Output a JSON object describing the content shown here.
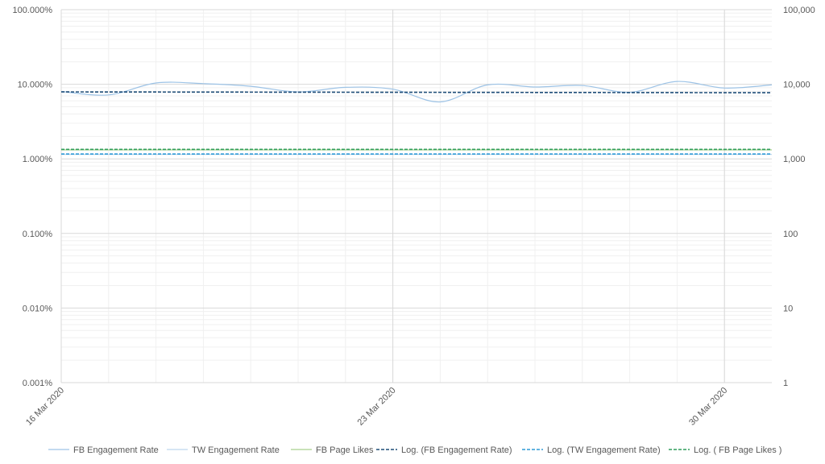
{
  "chart_data": {
    "type": "line",
    "title": "",
    "x_start": "2020-03-16",
    "x_end": "2020-03-31",
    "x_tick_labels": [
      "16 Mar 2020",
      "23 Mar 2020",
      "30 Mar 2020"
    ],
    "x_tick_dates": [
      "2020-03-16",
      "2020-03-23",
      "2020-03-30"
    ],
    "y_left": {
      "scale": "log",
      "min": 1e-05,
      "max": 1,
      "ticks": [
        1,
        0.1,
        0.01,
        0.001,
        0.0001,
        1e-05
      ],
      "tick_labels": [
        "100.000%",
        "10.000%",
        "1.000%",
        "0.100%",
        "0.010%",
        "0.001%"
      ]
    },
    "y_right": {
      "scale": "log",
      "min": 1,
      "max": 100000,
      "ticks": [
        100000,
        10000,
        1000,
        100,
        10,
        1
      ],
      "tick_labels": [
        "100,000",
        "10,000",
        "1,000",
        "100",
        "10",
        "1"
      ]
    },
    "grid": true,
    "legend_position": "bottom",
    "series": [
      {
        "name": "FB Engagement Rate",
        "axis": "left",
        "style": "solid",
        "color": "#9DC3E6",
        "x": [
          "2020-03-16",
          "2020-03-17",
          "2020-03-18",
          "2020-03-19",
          "2020-03-20",
          "2020-03-21",
          "2020-03-22",
          "2020-03-23",
          "2020-03-24",
          "2020-03-25",
          "2020-03-26",
          "2020-03-27",
          "2020-03-28",
          "2020-03-29",
          "2020-03-30",
          "2020-03-31"
        ],
        "values": [
          0.08,
          0.072,
          0.104,
          0.102,
          0.094,
          0.079,
          0.091,
          0.086,
          0.058,
          0.098,
          0.092,
          0.096,
          0.078,
          0.109,
          0.089,
          0.098
        ]
      },
      {
        "name": "TW Engagement Rate",
        "axis": "left",
        "style": "solid",
        "color": "#BDD7EE",
        "x": [
          "2020-03-16",
          "2020-03-31"
        ],
        "values": [
          0.0115,
          0.0115
        ]
      },
      {
        "name": "FB Page Likes",
        "axis": "right",
        "style": "solid",
        "color": "#A9D18E",
        "x": [
          "2020-03-16",
          "2020-03-31"
        ],
        "values": [
          1320,
          1320
        ]
      },
      {
        "name": "Log. (FB Engagement Rate)",
        "axis": "left",
        "style": "dashed",
        "color": "#1F4E79",
        "x": [
          "2020-03-16",
          "2020-03-31"
        ],
        "values": [
          0.079,
          0.077
        ]
      },
      {
        "name": "Log. (TW Engagement Rate)",
        "axis": "left",
        "style": "dashed",
        "color": "#2E9BD6",
        "x": [
          "2020-03-16",
          "2020-03-31"
        ],
        "values": [
          0.0116,
          0.0116
        ]
      },
      {
        "name": "Log. ( FB Page Likes )",
        "axis": "right",
        "style": "dashed",
        "color": "#2E9E5B",
        "x": [
          "2020-03-16",
          "2020-03-31"
        ],
        "values": [
          1340,
          1340
        ]
      }
    ]
  }
}
